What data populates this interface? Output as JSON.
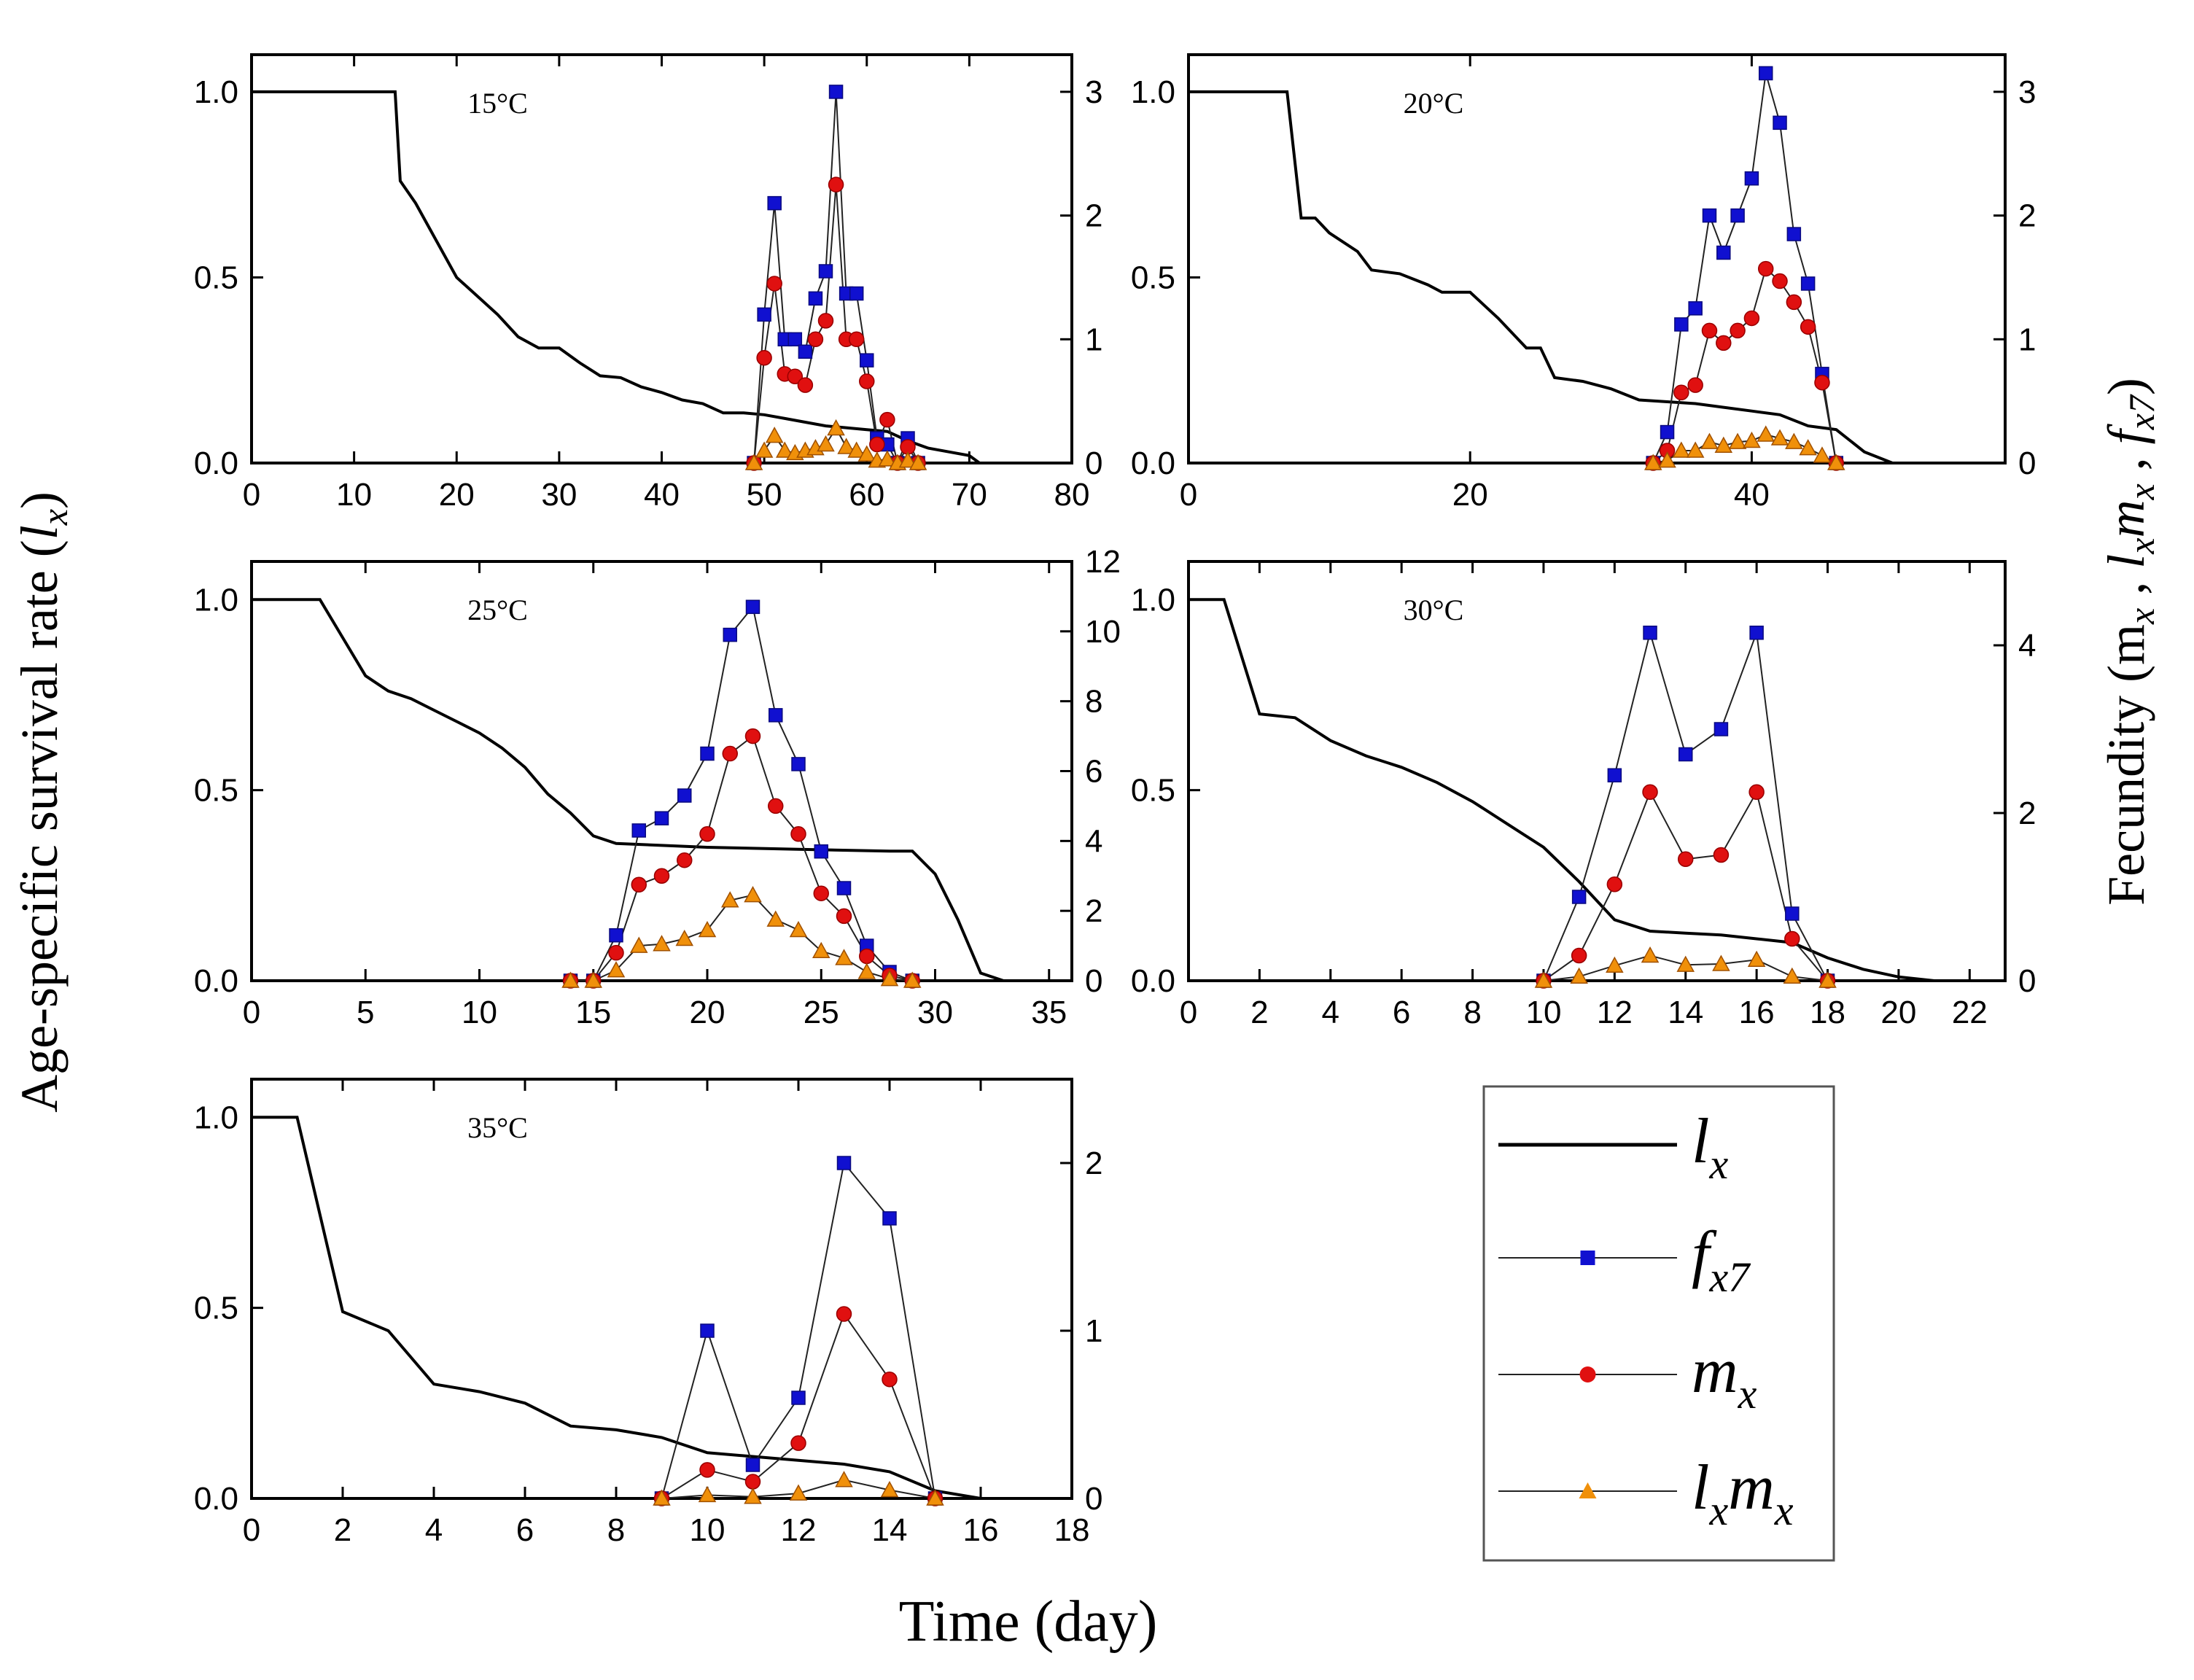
{
  "figure": {
    "ylabel_left": "Age-specific survival rate (",
    "ylabel_left_var": "l",
    "ylabel_left_sub": "x",
    "ylabel_left_end": ")",
    "ylabel_right": "Fecundity (m",
    "xlabel": "Time (day)",
    "colors": {
      "lx": "#000000",
      "fx7": "#1010d0",
      "mx": "#e01010",
      "lxmx": "#f0900a"
    }
  },
  "legend": {
    "entries": [
      {
        "key": "lx",
        "sym": "l",
        "sub": "x"
      },
      {
        "key": "fx7",
        "sym": "f",
        "sub": "x7"
      },
      {
        "key": "mx",
        "sym": "m",
        "sub": "x"
      },
      {
        "key": "lxmx",
        "sym": "l",
        "sub": "x",
        "sym2": "m",
        "sub2": "x"
      }
    ]
  },
  "chart_data": [
    {
      "type": "line",
      "title": "15°C",
      "xlim": [
        0,
        80
      ],
      "xticks": [
        0,
        10,
        20,
        30,
        40,
        50,
        60,
        70,
        80
      ],
      "ylim": [
        0,
        1.1
      ],
      "yticks": [
        "0.0",
        "0.5",
        "1.0"
      ],
      "y2lim": [
        0,
        3.3
      ],
      "y2ticks": [
        "0",
        "1",
        "2",
        "3"
      ],
      "lx": [
        [
          0,
          1
        ],
        [
          14,
          1
        ],
        [
          14.5,
          0.76
        ],
        [
          16,
          0.7
        ],
        [
          18,
          0.6
        ],
        [
          20,
          0.5
        ],
        [
          22,
          0.45
        ],
        [
          24,
          0.4
        ],
        [
          26,
          0.34
        ],
        [
          28,
          0.31
        ],
        [
          30,
          0.31
        ],
        [
          32,
          0.27
        ],
        [
          34,
          0.235
        ],
        [
          36,
          0.23
        ],
        [
          38,
          0.205
        ],
        [
          40,
          0.19
        ],
        [
          42,
          0.17
        ],
        [
          44,
          0.16
        ],
        [
          46,
          0.135
        ],
        [
          48,
          0.135
        ],
        [
          50,
          0.13
        ],
        [
          52,
          0.12
        ],
        [
          54,
          0.11
        ],
        [
          56,
          0.1
        ],
        [
          58,
          0.095
        ],
        [
          60,
          0.09
        ],
        [
          62,
          0.085
        ],
        [
          64,
          0.06
        ],
        [
          66,
          0.04
        ],
        [
          68,
          0.03
        ],
        [
          70,
          0.02
        ],
        [
          71,
          0
        ]
      ],
      "fx7": [
        [
          49,
          0
        ],
        [
          50,
          1.2
        ],
        [
          51,
          2.1
        ],
        [
          52,
          1
        ],
        [
          53,
          1
        ],
        [
          54,
          0.9
        ],
        [
          55,
          1.33
        ],
        [
          56,
          1.55
        ],
        [
          57,
          3
        ],
        [
          58,
          1.37
        ],
        [
          59,
          1.37
        ],
        [
          60,
          0.83
        ],
        [
          61,
          0.2
        ],
        [
          62,
          0.15
        ],
        [
          63,
          0
        ],
        [
          64,
          0.2
        ],
        [
          65,
          0
        ]
      ],
      "mx": [
        [
          49,
          0
        ],
        [
          50,
          0.85
        ],
        [
          51,
          1.45
        ],
        [
          52,
          0.72
        ],
        [
          53,
          0.7
        ],
        [
          54,
          0.63
        ],
        [
          55,
          1
        ],
        [
          56,
          1.15
        ],
        [
          57,
          2.25
        ],
        [
          58,
          1
        ],
        [
          59,
          1
        ],
        [
          60,
          0.66
        ],
        [
          61,
          0.15
        ],
        [
          62,
          0.35
        ],
        [
          63,
          0
        ],
        [
          64,
          0.13
        ],
        [
          65,
          0
        ]
      ],
      "lxmx": [
        [
          49,
          0
        ],
        [
          50,
          0.1
        ],
        [
          51,
          0.22
        ],
        [
          52,
          0.1
        ],
        [
          53,
          0.08
        ],
        [
          54,
          0.1
        ],
        [
          55,
          0.12
        ],
        [
          56,
          0.15
        ],
        [
          57,
          0.28
        ],
        [
          58,
          0.13
        ],
        [
          59,
          0.1
        ],
        [
          60,
          0.07
        ],
        [
          61,
          0.02
        ],
        [
          62,
          0.03
        ],
        [
          63,
          0
        ],
        [
          64,
          0.02
        ],
        [
          65,
          0
        ]
      ]
    },
    {
      "type": "line",
      "title": "20°C",
      "xlim": [
        0,
        58
      ],
      "xticks": [
        0,
        20,
        40
      ],
      "ylim": [
        0,
        1.1
      ],
      "yticks": [
        "0.0",
        "0.5",
        "1.0"
      ],
      "y2lim": [
        0,
        3.3
      ],
      "y2ticks": [
        "0",
        "1",
        "2",
        "3"
      ],
      "lx": [
        [
          0,
          1
        ],
        [
          7,
          1
        ],
        [
          8,
          0.66
        ],
        [
          9,
          0.66
        ],
        [
          10,
          0.62
        ],
        [
          12,
          0.57
        ],
        [
          13,
          0.52
        ],
        [
          15,
          0.51
        ],
        [
          17,
          0.48
        ],
        [
          18,
          0.46
        ],
        [
          20,
          0.46
        ],
        [
          22,
          0.39
        ],
        [
          24,
          0.31
        ],
        [
          25,
          0.31
        ],
        [
          26,
          0.23
        ],
        [
          28,
          0.22
        ],
        [
          30,
          0.2
        ],
        [
          32,
          0.17
        ],
        [
          34,
          0.165
        ],
        [
          36,
          0.16
        ],
        [
          38,
          0.15
        ],
        [
          40,
          0.14
        ],
        [
          42,
          0.13
        ],
        [
          44,
          0.1
        ],
        [
          45,
          0.095
        ],
        [
          46,
          0.09
        ],
        [
          48,
          0.03
        ],
        [
          50,
          0
        ]
      ],
      "fx7": [
        [
          33,
          0
        ],
        [
          34,
          0.25
        ],
        [
          35,
          1.12
        ],
        [
          36,
          1.25
        ],
        [
          37,
          2
        ],
        [
          38,
          1.7
        ],
        [
          39,
          2
        ],
        [
          40,
          2.3
        ],
        [
          41,
          3.15
        ],
        [
          42,
          2.75
        ],
        [
          43,
          1.85
        ],
        [
          44,
          1.45
        ],
        [
          45,
          0.72
        ],
        [
          46,
          0
        ]
      ],
      "mx": [
        [
          33,
          0
        ],
        [
          34,
          0.1
        ],
        [
          35,
          0.57
        ],
        [
          36,
          0.63
        ],
        [
          37,
          1.07
        ],
        [
          38,
          0.97
        ],
        [
          39,
          1.07
        ],
        [
          40,
          1.17
        ],
        [
          41,
          1.57
        ],
        [
          42,
          1.47
        ],
        [
          43,
          1.3
        ],
        [
          44,
          1.1
        ],
        [
          45,
          0.65
        ],
        [
          46,
          0
        ]
      ],
      "lxmx": [
        [
          33,
          0
        ],
        [
          34,
          0.02
        ],
        [
          35,
          0.1
        ],
        [
          36,
          0.1
        ],
        [
          37,
          0.17
        ],
        [
          38,
          0.14
        ],
        [
          39,
          0.17
        ],
        [
          40,
          0.18
        ],
        [
          41,
          0.23
        ],
        [
          42,
          0.2
        ],
        [
          43,
          0.17
        ],
        [
          44,
          0.12
        ],
        [
          45,
          0.06
        ],
        [
          46,
          0
        ]
      ]
    },
    {
      "type": "line",
      "title": "25°C",
      "xlim": [
        0,
        36
      ],
      "xticks": [
        0,
        5,
        10,
        15,
        20,
        25,
        30,
        35
      ],
      "ylim": [
        0,
        1.1
      ],
      "yticks": [
        "0.0",
        "0.5",
        "1.0"
      ],
      "y2lim": [
        0,
        12
      ],
      "y2ticks": [
        "0",
        "2",
        "4",
        "6",
        "8",
        "10",
        "12"
      ],
      "lx": [
        [
          0,
          1
        ],
        [
          3,
          1
        ],
        [
          4,
          0.9
        ],
        [
          5,
          0.8
        ],
        [
          6,
          0.76
        ],
        [
          7,
          0.74
        ],
        [
          8,
          0.71
        ],
        [
          9,
          0.68
        ],
        [
          10,
          0.65
        ],
        [
          11,
          0.61
        ],
        [
          12,
          0.56
        ],
        [
          13,
          0.49
        ],
        [
          14,
          0.44
        ],
        [
          15,
          0.38
        ],
        [
          16,
          0.36
        ],
        [
          18,
          0.355
        ],
        [
          20,
          0.35
        ],
        [
          24,
          0.345
        ],
        [
          28,
          0.34
        ],
        [
          29,
          0.34
        ],
        [
          30,
          0.28
        ],
        [
          31,
          0.16
        ],
        [
          32,
          0.02
        ],
        [
          33,
          0
        ]
      ],
      "fx7": [
        [
          14,
          0
        ],
        [
          15,
          0
        ],
        [
          16,
          1.3
        ],
        [
          17,
          4.3
        ],
        [
          18,
          4.65
        ],
        [
          19,
          5.3
        ],
        [
          20,
          6.5
        ],
        [
          21,
          9.9
        ],
        [
          22,
          10.7
        ],
        [
          23,
          7.6
        ],
        [
          24,
          6.2
        ],
        [
          25,
          3.7
        ],
        [
          26,
          2.65
        ],
        [
          27,
          1
        ],
        [
          28,
          0.25
        ],
        [
          29,
          0
        ]
      ],
      "mx": [
        [
          14,
          0
        ],
        [
          15,
          0
        ],
        [
          16,
          0.8
        ],
        [
          17,
          2.75
        ],
        [
          18,
          3
        ],
        [
          19,
          3.45
        ],
        [
          20,
          4.2
        ],
        [
          21,
          6.5
        ],
        [
          22,
          7
        ],
        [
          23,
          5
        ],
        [
          24,
          4.2
        ],
        [
          25,
          2.5
        ],
        [
          26,
          1.85
        ],
        [
          27,
          0.7
        ],
        [
          28,
          0.15
        ],
        [
          29,
          0
        ]
      ],
      "lxmx": [
        [
          14,
          0
        ],
        [
          15,
          0
        ],
        [
          16,
          0.3
        ],
        [
          17,
          1
        ],
        [
          18,
          1.05
        ],
        [
          19,
          1.2
        ],
        [
          20,
          1.45
        ],
        [
          21,
          2.3
        ],
        [
          22,
          2.45
        ],
        [
          23,
          1.75
        ],
        [
          24,
          1.45
        ],
        [
          25,
          0.85
        ],
        [
          26,
          0.65
        ],
        [
          27,
          0.25
        ],
        [
          28,
          0.05
        ],
        [
          29,
          0
        ]
      ]
    },
    {
      "type": "line",
      "title": "30°C",
      "xlim": [
        0,
        23
      ],
      "xticks": [
        0,
        2,
        4,
        6,
        8,
        10,
        12,
        14,
        16,
        18,
        20,
        22
      ],
      "ylim": [
        0,
        1.1
      ],
      "yticks": [
        "0.0",
        "0.5",
        "1.0"
      ],
      "y2lim": [
        0,
        5
      ],
      "y2ticks": [
        "0",
        "2",
        "4"
      ],
      "lx": [
        [
          0,
          1
        ],
        [
          1,
          1
        ],
        [
          2,
          0.7
        ],
        [
          3,
          0.69
        ],
        [
          4,
          0.63
        ],
        [
          5,
          0.59
        ],
        [
          6,
          0.56
        ],
        [
          7,
          0.52
        ],
        [
          8,
          0.47
        ],
        [
          9,
          0.41
        ],
        [
          10,
          0.35
        ],
        [
          11,
          0.26
        ],
        [
          12,
          0.16
        ],
        [
          13,
          0.13
        ],
        [
          14,
          0.125
        ],
        [
          15,
          0.12
        ],
        [
          16,
          0.11
        ],
        [
          17,
          0.1
        ],
        [
          18,
          0.06
        ],
        [
          19,
          0.03
        ],
        [
          20,
          0.01
        ],
        [
          21,
          0
        ]
      ],
      "fx7": [
        [
          10,
          0
        ],
        [
          11,
          1
        ],
        [
          12,
          2.45
        ],
        [
          13,
          4.15
        ],
        [
          14,
          2.7
        ],
        [
          15,
          3
        ],
        [
          16,
          4.15
        ],
        [
          17,
          0.8
        ],
        [
          18,
          0
        ]
      ],
      "mx": [
        [
          10,
          0
        ],
        [
          11,
          0.3
        ],
        [
          12,
          1.15
        ],
        [
          13,
          2.25
        ],
        [
          14,
          1.45
        ],
        [
          15,
          1.5
        ],
        [
          16,
          2.25
        ],
        [
          17,
          0.5
        ],
        [
          18,
          0
        ]
      ],
      "lxmx": [
        [
          10,
          0
        ],
        [
          11,
          0.05
        ],
        [
          12,
          0.18
        ],
        [
          13,
          0.3
        ],
        [
          14,
          0.19
        ],
        [
          15,
          0.2
        ],
        [
          16,
          0.25
        ],
        [
          17,
          0.05
        ],
        [
          18,
          0
        ]
      ]
    },
    {
      "type": "line",
      "title": "35°C",
      "xlim": [
        0,
        18
      ],
      "xticks": [
        0,
        2,
        4,
        6,
        8,
        10,
        12,
        14,
        16,
        18
      ],
      "ylim": [
        0,
        1.1
      ],
      "yticks": [
        "0.0",
        "0.5",
        "1.0"
      ],
      "y2lim": [
        0,
        2.5
      ],
      "y2ticks": [
        "0",
        "1",
        "2"
      ],
      "lx": [
        [
          0,
          1
        ],
        [
          1,
          1
        ],
        [
          2,
          0.49
        ],
        [
          3,
          0.44
        ],
        [
          4,
          0.3
        ],
        [
          5,
          0.28
        ],
        [
          6,
          0.25
        ],
        [
          7,
          0.19
        ],
        [
          8,
          0.18
        ],
        [
          9,
          0.16
        ],
        [
          10,
          0.12
        ],
        [
          11,
          0.11
        ],
        [
          12,
          0.1
        ],
        [
          13,
          0.09
        ],
        [
          14,
          0.07
        ],
        [
          15,
          0.02
        ],
        [
          16,
          0
        ]
      ],
      "fx7": [
        [
          9,
          0
        ],
        [
          10,
          1
        ],
        [
          11,
          0.2
        ],
        [
          12,
          0.6
        ],
        [
          13,
          2
        ],
        [
          14,
          1.67
        ],
        [
          15,
          0
        ]
      ],
      "mx": [
        [
          9,
          0
        ],
        [
          10,
          0.17
        ],
        [
          11,
          0.1
        ],
        [
          12,
          0.33
        ],
        [
          13,
          1.1
        ],
        [
          14,
          0.71
        ],
        [
          15,
          0
        ]
      ],
      "lxmx": [
        [
          9,
          0
        ],
        [
          10,
          0.02
        ],
        [
          11,
          0.01
        ],
        [
          12,
          0.03
        ],
        [
          13,
          0.11
        ],
        [
          14,
          0.05
        ],
        [
          15,
          0
        ]
      ]
    }
  ]
}
